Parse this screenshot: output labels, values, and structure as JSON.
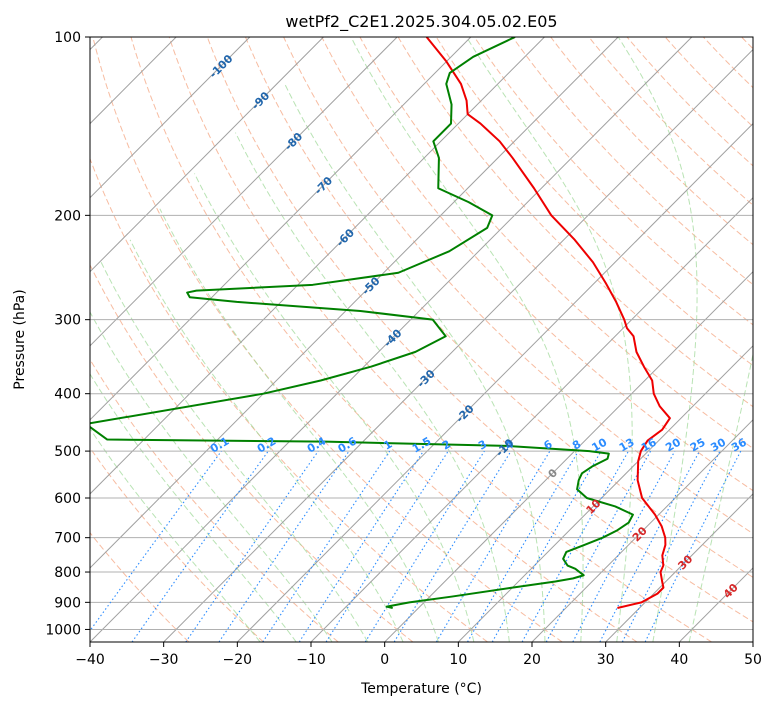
{
  "chart_data": {
    "type": "skew-t",
    "title": "wetPf2_C2E1.2025.304.05.02.E05",
    "xlabel": "Temperature (°C)",
    "ylabel": "Pressure (hPa)",
    "xlim": [
      -40,
      50
    ],
    "ylim": [
      1050,
      100
    ],
    "x_ticks": [
      -40,
      -30,
      -20,
      -10,
      0,
      10,
      20,
      30,
      40,
      50
    ],
    "x_tick_labels": [
      "−40",
      "−30",
      "−20",
      "−10",
      "0",
      "10",
      "20",
      "30",
      "40",
      "50"
    ],
    "y_ticks": [
      1000,
      900,
      800,
      700,
      600,
      500,
      400,
      300,
      200,
      100
    ],
    "y_tick_labels": [
      "1000",
      "900",
      "800",
      "700",
      "600",
      "500",
      "400",
      "300",
      "200",
      "100"
    ],
    "skew_degrees_per_decade": 80,
    "colors": {
      "temperature": "#ee0000",
      "dewpoint": "#008000",
      "dry_adiabat": "#f4a582",
      "moist_adiabat": "#a1d99b",
      "mixing_ratio": "#2b8cff",
      "isotherm_label": "#2166ac",
      "warm_isotherm_label": "#d62728",
      "zero_isotherm_label": "#888888",
      "grid": "#b0b0b0",
      "isotherm_line": "#a0a0a0"
    },
    "series": [
      {
        "name": "Temperature",
        "points": [
          [
            920,
            27
          ],
          [
            900,
            29.5
          ],
          [
            870,
            30.5
          ],
          [
            850,
            30.5
          ],
          [
            830,
            29.5
          ],
          [
            800,
            28
          ],
          [
            780,
            27.5
          ],
          [
            750,
            26
          ],
          [
            720,
            25
          ],
          [
            700,
            24
          ],
          [
            670,
            22
          ],
          [
            640,
            19.5
          ],
          [
            600,
            15.5
          ],
          [
            560,
            12.5
          ],
          [
            520,
            10
          ],
          [
            500,
            9
          ],
          [
            480,
            8.5
          ],
          [
            460,
            9
          ],
          [
            440,
            8.5
          ],
          [
            420,
            5.5
          ],
          [
            400,
            3
          ],
          [
            380,
            1
          ],
          [
            360,
            -2
          ],
          [
            340,
            -5
          ],
          [
            320,
            -7.5
          ],
          [
            310,
            -9.5
          ],
          [
            300,
            -11
          ],
          [
            280,
            -14.5
          ],
          [
            260,
            -18.5
          ],
          [
            240,
            -23
          ],
          [
            220,
            -28.5
          ],
          [
            200,
            -35
          ],
          [
            180,
            -41
          ],
          [
            160,
            -48
          ],
          [
            150,
            -52
          ],
          [
            140,
            -57
          ],
          [
            135,
            -60
          ],
          [
            128,
            -62
          ],
          [
            120,
            -65
          ],
          [
            110,
            -70
          ],
          [
            100,
            -76
          ]
        ]
      },
      {
        "name": "Dewpoint",
        "points": [
          [
            920,
            -3.5
          ],
          [
            915,
            -4.5
          ],
          [
            900,
            -2
          ],
          [
            880,
            3
          ],
          [
            850,
            10
          ],
          [
            830,
            15
          ],
          [
            820,
            17
          ],
          [
            810,
            18
          ],
          [
            800,
            17
          ],
          [
            790,
            16
          ],
          [
            780,
            14.5
          ],
          [
            760,
            13
          ],
          [
            740,
            12.5
          ],
          [
            720,
            14
          ],
          [
            700,
            15.5
          ],
          [
            680,
            16.5
          ],
          [
            660,
            17
          ],
          [
            640,
            16.5
          ],
          [
            620,
            13
          ],
          [
            600,
            8
          ],
          [
            580,
            5.5
          ],
          [
            560,
            4.5
          ],
          [
            545,
            4
          ],
          [
            530,
            4.5
          ],
          [
            515,
            5.5
          ],
          [
            505,
            5
          ],
          [
            500,
            2
          ],
          [
            490,
            -10
          ],
          [
            482,
            -35
          ],
          [
            478,
            -65
          ],
          [
            450,
            -70
          ],
          [
            400,
            -50
          ],
          [
            380,
            -44
          ],
          [
            360,
            -39
          ],
          [
            340,
            -35
          ],
          [
            320,
            -33
          ],
          [
            300,
            -37
          ],
          [
            290,
            -48
          ],
          [
            280,
            -66
          ],
          [
            275,
            -73
          ],
          [
            270,
            -74
          ],
          [
            268,
            -73
          ],
          [
            262,
            -58
          ],
          [
            250,
            -48
          ],
          [
            230,
            -44
          ],
          [
            210,
            -42
          ],
          [
            200,
            -43
          ],
          [
            190,
            -48
          ],
          [
            180,
            -54
          ],
          [
            160,
            -58
          ],
          [
            150,
            -61
          ],
          [
            140,
            -61
          ],
          [
            130,
            -63.5
          ],
          [
            120,
            -67
          ],
          [
            115,
            -68
          ],
          [
            108,
            -67
          ],
          [
            100,
            -64
          ]
        ]
      }
    ],
    "mixing_ratio_labels": [
      "0.1",
      "0.2",
      "0.4",
      "0.6",
      "1",
      "1.5",
      "2",
      "3",
      "4",
      "6",
      "8",
      "10",
      "13",
      "16",
      "20",
      "25",
      "30",
      "36"
    ],
    "mixing_ratio_values": [
      0.1,
      0.2,
      0.4,
      0.6,
      1,
      1.5,
      2,
      3,
      4,
      6,
      8,
      10,
      13,
      16,
      20,
      25,
      30,
      36
    ],
    "isotherm_labels": [
      {
        "value": -100,
        "text": "-100"
      },
      {
        "value": -90,
        "text": "-90"
      },
      {
        "value": -80,
        "text": "-80"
      },
      {
        "value": -70,
        "text": "-70"
      },
      {
        "value": -60,
        "text": "-60"
      },
      {
        "value": -50,
        "text": "-50"
      },
      {
        "value": -40,
        "text": "-40"
      },
      {
        "value": -30,
        "text": "-30"
      },
      {
        "value": -20,
        "text": "-20"
      },
      {
        "value": -10,
        "text": "-10"
      },
      {
        "value": 0,
        "text": "0"
      },
      {
        "value": 10,
        "text": "10"
      },
      {
        "value": 20,
        "text": "20"
      },
      {
        "value": 30,
        "text": "30"
      },
      {
        "value": 40,
        "text": "40"
      }
    ]
  }
}
